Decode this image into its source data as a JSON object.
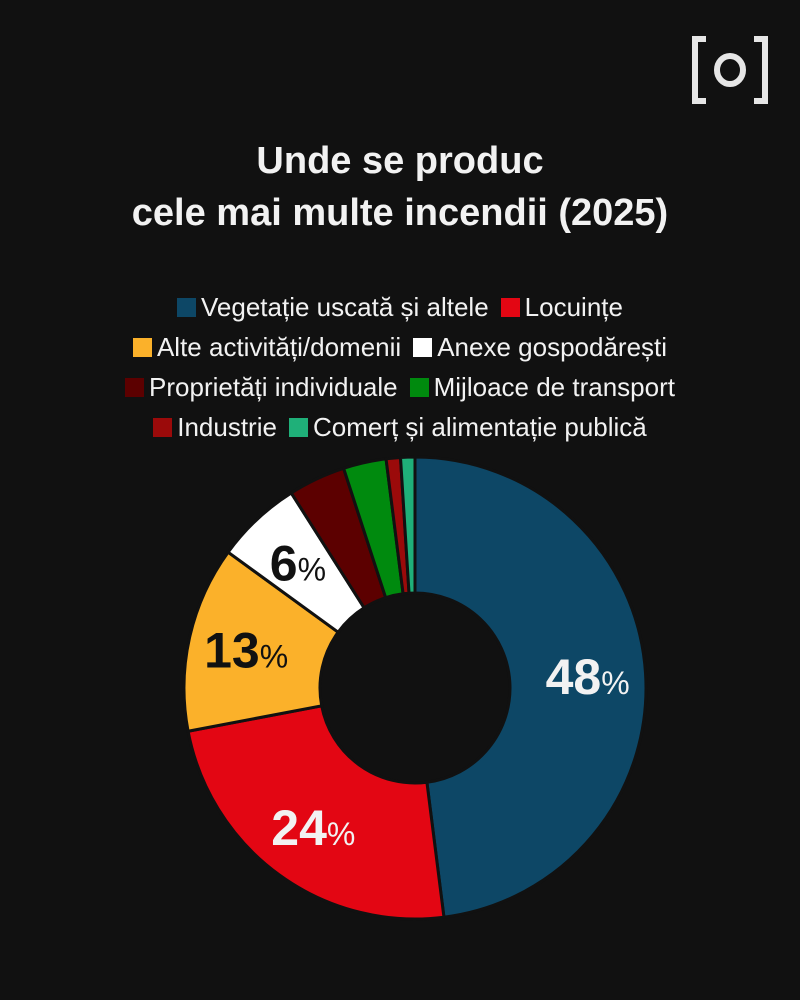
{
  "logo_text": "[o]",
  "chart_data": {
    "type": "pie",
    "donut": true,
    "title": "Unde se produc cele mai multe incendii (2025)",
    "title_lines": [
      "Unde se produc",
      "cele mai multe incendii (2025)"
    ],
    "legend_placement": "top-center",
    "slices": [
      {
        "label": "Vegetație uscată și altele",
        "value": 48,
        "color": "#0d4766",
        "data_label": "48",
        "label_color": "#f2f2f2"
      },
      {
        "label": "Locuințe",
        "value": 24,
        "color": "#e30613",
        "data_label": "24",
        "label_color": "#f2f2f2"
      },
      {
        "label": "Alte activități/domenii",
        "value": 13,
        "color": "#fbb12a",
        "data_label": "13",
        "label_color": "#111111"
      },
      {
        "label": "Anexe gospodărești",
        "value": 6,
        "color": "#ffffff",
        "data_label": "6",
        "label_color": "#111111"
      },
      {
        "label": "Proprietăți individuale",
        "value": 4,
        "color": "#5c0000",
        "data_label": null
      },
      {
        "label": "Mijloace de transport",
        "value": 3,
        "color": "#008a0e",
        "data_label": null
      },
      {
        "label": "Industrie",
        "value": 1,
        "color": "#9b0a0a",
        "data_label": null
      },
      {
        "label": "Comerț și alimentație publică",
        "value": 1,
        "color": "#1fb079",
        "data_label": null
      }
    ],
    "percent_symbol": "%"
  }
}
